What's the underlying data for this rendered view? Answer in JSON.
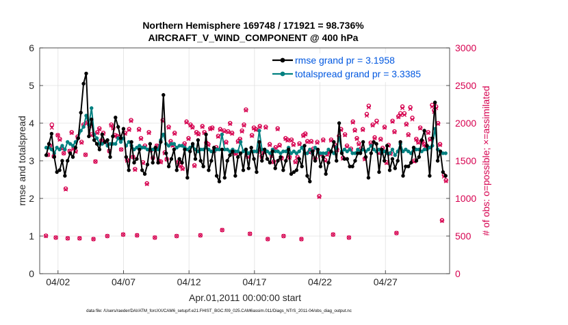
{
  "chart_data": {
    "type": "line",
    "title_line1": "Northern Hemisphere 169748 / 171921 = 98.736%",
    "title_line2": "AIRCRAFT_V_WIND_COMPONENT @ 400 hPa",
    "ylabel_left": "rmse and totalspread",
    "ylabel_right": "# of obs: o=possible; ×=assimilated",
    "xlabel": "Apr.01,2011 00:00:00 start",
    "footnote": "data file: /Users/raeder/DAI/ATM_forcXX/CAM6_setup/f.e21.FHIST_BGC.f09_025.CAM6assim.011/Diags_NTrS_2011-04/obs_diag_output.nc",
    "x_ticks": [
      {
        "day": 2,
        "label": "04/02"
      },
      {
        "day": 7,
        "label": "04/07"
      },
      {
        "day": 12,
        "label": "04/12"
      },
      {
        "day": 17,
        "label": "04/17"
      },
      {
        "day": 22,
        "label": "04/22"
      },
      {
        "day": 27,
        "label": "04/27"
      }
    ],
    "xlim_days": [
      0.6,
      31.9
    ],
    "ylim_left": [
      0,
      6
    ],
    "yticks_left": [
      "0",
      "1",
      "2",
      "3",
      "4",
      "5",
      "6"
    ],
    "ylim_right": [
      0,
      3000
    ],
    "yticks_right": [
      "0",
      "500",
      "1000",
      "1500",
      "2000",
      "2500",
      "3000"
    ],
    "legend": [
      {
        "label": "rmse grand pr = 3.1958",
        "color": "#000000"
      },
      {
        "label": "totalspread grand pr = 3.3385",
        "color": "#008080"
      }
    ],
    "colors": {
      "rmse": "#000000",
      "spread": "#008080",
      "obs": "#d6004f",
      "legend_text": "#0057e0",
      "grid": "#e0e0e0"
    },
    "series": [
      {
        "name": "rmse",
        "values": [
          3.15,
          3.45,
          3.72,
          3.1,
          2.7,
          2.75,
          3.0,
          2.6,
          3.0,
          3.2,
          3.1,
          3.35,
          3.6,
          4.28,
          5.05,
          5.32,
          3.65,
          4.1,
          3.55,
          3.45,
          3.3,
          3.7,
          3.5,
          3.55,
          3.1,
          3.65,
          4.15,
          3.9,
          3.6,
          3.85,
          3.1,
          2.75,
          3.5,
          2.95,
          3.05,
          3.3,
          2.75,
          2.65,
          2.9,
          3.45,
          2.95,
          3.35,
          2.95,
          3.5,
          4.75,
          3.2,
          2.85,
          3.05,
          3.3,
          2.75,
          3.05,
          2.95,
          3.3,
          2.55,
          3.25,
          3.45,
          3.05,
          3.55,
          3.0,
          2.85,
          3.7,
          2.75,
          3.0,
          3.35,
          2.6,
          2.45,
          3.3,
          2.55,
          3.0,
          3.15,
          3.25,
          2.6,
          3.1,
          3.2,
          2.75,
          3.3,
          2.8,
          3.35,
          3.05,
          2.7,
          3.5,
          3.0,
          3.3,
          3.05,
          2.95,
          3.25,
          2.8,
          3.0,
          3.1,
          2.75,
          3.0,
          3.3,
          2.65,
          2.7,
          2.75,
          3.05,
          2.85,
          3.4,
          2.6,
          2.45,
          3.25,
          3.0,
          3.3,
          2.85,
          3.1,
          2.65,
          2.95,
          3.25,
          3.5,
          3.0,
          4.0,
          3.2,
          3.05,
          3.05,
          2.85,
          2.85,
          3.0,
          3.2,
          3.2,
          3.5,
          3.1,
          2.55,
          3.2,
          3.5,
          3.45,
          2.7,
          3.3,
          3.0,
          3.4,
          2.75,
          3.05,
          2.8,
          3.0,
          3.5,
          2.6,
          2.85,
          2.85,
          2.95,
          3.35,
          3.0,
          3.1,
          3.55,
          3.8,
          3.4,
          2.6,
          3.6,
          4.55,
          3.0,
          3.25,
          2.7,
          2.6
        ]
      },
      {
        "name": "totalspread",
        "values": [
          3.35,
          3.35,
          3.3,
          3.2,
          3.35,
          3.3,
          3.4,
          3.3,
          3.5,
          3.45,
          3.4,
          3.5,
          3.6,
          3.8,
          3.9,
          4.2,
          3.95,
          4.4,
          3.7,
          3.6,
          3.45,
          3.45,
          3.5,
          3.4,
          3.45,
          3.45,
          3.45,
          3.6,
          3.5,
          3.6,
          3.4,
          3.5,
          3.4,
          3.3,
          3.35,
          3.4,
          3.35,
          3.35,
          3.3,
          3.3,
          3.3,
          3.3,
          3.3,
          3.55,
          3.7,
          3.45,
          3.4,
          3.45,
          3.45,
          3.35,
          3.4,
          3.4,
          3.35,
          3.3,
          3.35,
          3.4,
          3.3,
          3.25,
          3.3,
          3.3,
          3.35,
          3.3,
          3.25,
          3.25,
          3.3,
          3.3,
          3.7,
          3.3,
          3.3,
          3.25,
          3.3,
          3.25,
          3.25,
          3.5,
          3.25,
          3.3,
          3.2,
          3.25,
          3.25,
          3.25,
          3.8,
          3.3,
          3.3,
          3.25,
          3.2,
          3.3,
          3.25,
          3.25,
          3.2,
          3.25,
          3.25,
          3.35,
          3.2,
          3.25,
          3.2,
          3.25,
          3.35,
          3.2,
          3.2,
          3.3,
          3.2,
          3.35,
          3.25,
          3.2,
          3.2,
          3.2,
          3.3,
          3.25,
          3.2,
          3.35,
          3.6,
          3.25,
          3.3,
          3.25,
          3.3,
          3.2,
          3.2,
          3.3,
          3.25,
          3.3,
          3.25,
          3.3,
          3.4,
          3.3,
          3.25,
          3.3,
          3.2,
          3.25,
          3.2,
          3.2,
          3.3,
          3.15,
          3.25,
          3.45,
          3.25,
          3.3,
          3.25,
          3.2,
          3.35,
          3.3,
          3.3,
          3.25,
          3.3,
          3.3,
          3.35,
          3.4,
          3.85,
          3.3,
          3.25,
          3.2,
          3.2
        ]
      },
      {
        "name": "obs_possible",
        "values": [
          505,
          1580,
          1700,
          1980,
          1560,
          480,
          1840,
          1790,
          1670,
          1600,
          1130,
          470,
          1630,
          1880,
          1670,
          1630,
          1820,
          470,
          1750,
          1980,
          1580,
          2010,
          1970,
          1850,
          460,
          1490,
          1880,
          1930,
          1770,
          1870,
          1750,
          500,
          1630,
          1980,
          1940,
          1840,
          1830,
          1810,
          1650,
          520,
          1870,
          1510,
          1920,
          2040,
          1550,
          1390,
          510,
          1920,
          1800,
          1480,
          1700,
          1200,
          1880,
          1640,
          1540,
          480,
          1700,
          1500,
          1490,
          2040,
          1610,
          1520,
          1950,
          1760,
          1710,
          1870,
          500,
          1490,
          1440,
          1400,
          1730,
          2020,
          1800,
          1980,
          1950,
          1440,
          1880,
          1860,
          510,
          1960,
          1880,
          1740,
          1720,
          1930,
          1940,
          1640,
          1680,
          1830,
          1920,
          580,
          1900,
          1750,
          1890,
          2000,
          1870,
          1610,
          1600,
          1760,
          1790,
          1900,
          1980,
          2180,
          1560,
          530,
          1840,
          1940,
          1920,
          1630,
          1960,
          1560,
          1620,
          1950,
          460,
          1720,
          1570,
          1490,
          1680,
          1930,
          1710,
          1540,
          500,
          1800,
          1780,
          1550,
          1780,
          1720,
          1490,
          1550,
          1730,
          460,
          1840,
          1860,
          1760,
          1620,
          1760,
          1660,
          1530,
          1750,
          1030,
          1590,
          1780,
          1510,
          1590,
          1620,
          1780,
          520,
          1710,
          1650,
          1830,
          1920,
          1540,
          1850,
          1700,
          480,
          1660,
          2020,
          1910,
          1800,
          1730,
          1660,
          1920,
          1530,
          2120,
          2230,
          1740,
          1980,
          1810,
          2030,
          1610,
          1790,
          1670,
          1950,
          1480,
          1710,
          1600,
          2030,
          1890,
          540,
          2090,
          2130,
          2220,
          2130,
          1990,
          1850,
          2210,
          2070,
          1500,
          1790,
          1750,
          1940,
          1760,
          1720,
          1680,
          1880,
          1790,
          2240,
          2170,
          2220,
          2000,
          1720,
          710,
          1310,
          1240
        ]
      },
      {
        "name": "obs_assimilated",
        "values": [
          500,
          1580,
          1700,
          1940,
          1560,
          480,
          1840,
          1780,
          1660,
          1600,
          1120,
          470,
          1630,
          1870,
          1660,
          1620,
          1810,
          470,
          1740,
          1970,
          1580,
          2000,
          1960,
          1840,
          460,
          1490,
          1870,
          1920,
          1760,
          1860,
          1740,
          500,
          1630,
          1970,
          1930,
          1830,
          1820,
          1800,
          1650,
          520,
          1860,
          1500,
          1910,
          2030,
          1550,
          1380,
          510,
          1910,
          1790,
          1470,
          1690,
          1190,
          1870,
          1640,
          1540,
          480,
          1700,
          1490,
          1480,
          2030,
          1600,
          1520,
          1940,
          1750,
          1700,
          1860,
          500,
          1480,
          1430,
          1390,
          1720,
          2010,
          1790,
          1970,
          1940,
          1430,
          1870,
          1850,
          510,
          1950,
          1870,
          1730,
          1710,
          1920,
          1930,
          1630,
          1670,
          1820,
          1910,
          580,
          1890,
          1740,
          1880,
          1990,
          1860,
          1600,
          1590,
          1750,
          1780,
          1890,
          1970,
          2170,
          1550,
          530,
          1830,
          1930,
          1910,
          1620,
          1950,
          1550,
          1610,
          1940,
          460,
          1710,
          1560,
          1480,
          1670,
          1920,
          1700,
          1530,
          500,
          1790,
          1770,
          1540,
          1770,
          1710,
          1480,
          1540,
          1720,
          460,
          1830,
          1850,
          1750,
          1610,
          1750,
          1650,
          1520,
          1740,
          1020,
          1580,
          1770,
          1500,
          1580,
          1610,
          1770,
          520,
          1700,
          1640,
          1820,
          1910,
          1530,
          1840,
          1690,
          480,
          1650,
          2010,
          1900,
          1790,
          1720,
          1650,
          1910,
          1520,
          2100,
          2210,
          1730,
          1970,
          1800,
          2010,
          1600,
          1780,
          1660,
          1940,
          1470,
          1700,
          1590,
          2020,
          1880,
          540,
          2080,
          2110,
          2200,
          2110,
          1980,
          1840,
          2190,
          2050,
          1490,
          1780,
          1740,
          1930,
          1750,
          1710,
          1670,
          1870,
          1780,
          2220,
          2150,
          2200,
          1990,
          1710,
          700,
          1290,
          1230
        ]
      }
    ]
  }
}
